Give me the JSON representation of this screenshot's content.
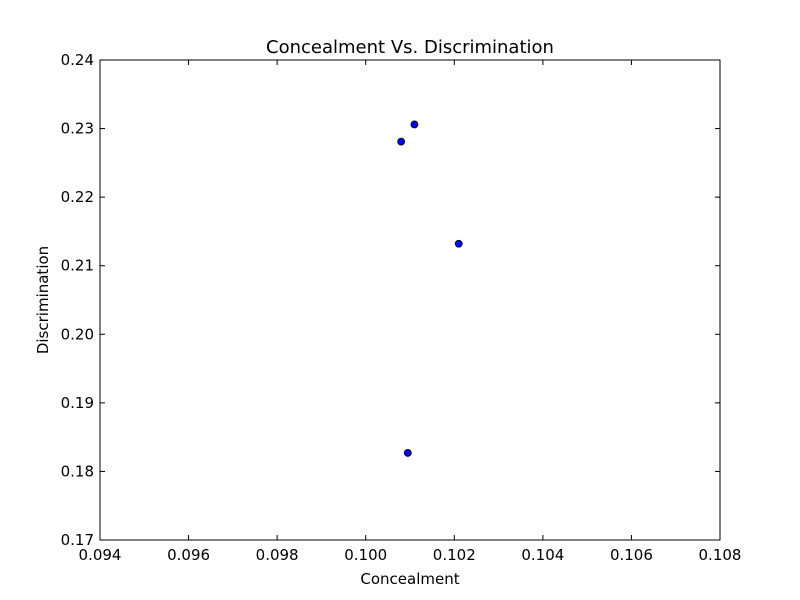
{
  "chart_data": {
    "type": "scatter",
    "title": "Concealment Vs. Discrimination",
    "xlabel": "Concealment",
    "ylabel": "Discrimination",
    "xlim": [
      0.094,
      0.108
    ],
    "ylim": [
      0.17,
      0.24
    ],
    "x_ticks": [
      "0.094",
      "0.096",
      "0.098",
      "0.100",
      "0.102",
      "0.104",
      "0.106",
      "0.108"
    ],
    "y_ticks": [
      "0.17",
      "0.18",
      "0.19",
      "0.20",
      "0.21",
      "0.22",
      "0.23",
      "0.24"
    ],
    "grid": false,
    "marker_color": "#0000ff",
    "points": [
      {
        "x": 0.1008,
        "y": 0.2281
      },
      {
        "x": 0.1011,
        "y": 0.2306
      },
      {
        "x": 0.1021,
        "y": 0.2132
      },
      {
        "x": 0.10095,
        "y": 0.1827
      }
    ]
  }
}
